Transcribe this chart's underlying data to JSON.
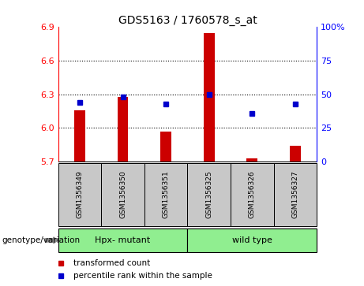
{
  "title": "GDS5163 / 1760578_s_at",
  "samples": [
    "GSM1356349",
    "GSM1356350",
    "GSM1356351",
    "GSM1356325",
    "GSM1356326",
    "GSM1356327"
  ],
  "red_values": [
    6.16,
    6.28,
    5.97,
    6.85,
    5.73,
    5.84
  ],
  "blue_values": [
    44,
    48,
    43,
    50,
    36,
    43
  ],
  "ylim_left": [
    5.7,
    6.9
  ],
  "ylim_right": [
    0,
    100
  ],
  "yticks_left": [
    5.7,
    6.0,
    6.3,
    6.6,
    6.9
  ],
  "yticks_right": [
    0,
    25,
    50,
    75,
    100
  ],
  "ytick_labels_right": [
    "0",
    "25",
    "50",
    "75",
    "100%"
  ],
  "groups": [
    {
      "label": "Hpx- mutant",
      "indices": [
        0,
        1,
        2
      ],
      "color": "#90EE90"
    },
    {
      "label": "wild type",
      "indices": [
        3,
        4,
        5
      ],
      "color": "#90EE90"
    }
  ],
  "group_label": "genotype/variation",
  "legend_red": "transformed count",
  "legend_blue": "percentile rank within the sample",
  "bar_color": "#CC0000",
  "dot_color": "#0000CC",
  "bg_color": "#FFFFFF",
  "plot_bg": "#FFFFFF",
  "label_bg": "#C8C8C8",
  "bar_width": 0.25,
  "base_value": 5.7
}
